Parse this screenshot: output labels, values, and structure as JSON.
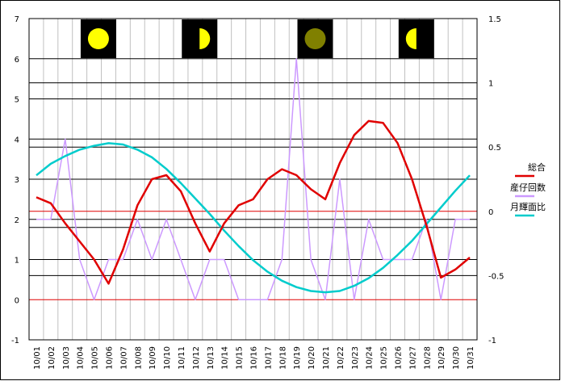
{
  "chart_data": {
    "type": "line",
    "categories": [
      "10/01",
      "10/02",
      "10/03",
      "10/04",
      "10/05",
      "10/06",
      "10/07",
      "10/08",
      "10/09",
      "10/10",
      "10/11",
      "10/12",
      "10/13",
      "10/14",
      "10/15",
      "10/16",
      "10/17",
      "10/18",
      "10/19",
      "10/20",
      "10/21",
      "10/22",
      "10/23",
      "10/24",
      "10/25",
      "10/26",
      "10/27",
      "10/28",
      "10/29",
      "10/30",
      "10/31"
    ],
    "y_left": {
      "min": -1,
      "max": 7,
      "ticks": [
        "-1",
        "0",
        "1",
        "2",
        "3",
        "4",
        "5",
        "6",
        "7"
      ]
    },
    "y_right": {
      "min": -1,
      "max": 1.5,
      "ticks": [
        "-1",
        "-0.5",
        "0",
        "0.5",
        "1",
        "1.5"
      ]
    },
    "extra_gridlines_left": [
      0.6,
      1.8,
      3.8,
      5.4
    ],
    "reference_lines": {
      "left_zero": 0,
      "right_zero": 0,
      "color": "#e00000"
    },
    "grid": true,
    "legend_position": "right",
    "series": [
      {
        "name": "総合",
        "axis": "left",
        "color": "#e00000",
        "values": [
          2.55,
          2.4,
          1.9,
          1.45,
          1.0,
          0.4,
          1.25,
          2.35,
          3.0,
          3.1,
          2.7,
          1.9,
          1.2,
          1.9,
          2.35,
          2.5,
          3.0,
          3.25,
          3.1,
          2.75,
          2.5,
          3.4,
          4.1,
          4.45,
          4.4,
          3.9,
          3.0,
          1.85,
          0.55,
          0.75,
          1.05
        ]
      },
      {
        "name": "産仔回数",
        "axis": "left",
        "color": "#cc99ff",
        "values": [
          2,
          2,
          4,
          1,
          0,
          1,
          1,
          2,
          1,
          2,
          1,
          0,
          1,
          1,
          0,
          0,
          0,
          1,
          6,
          1,
          0,
          3,
          0,
          2,
          1,
          1,
          1,
          2,
          0,
          2,
          2
        ]
      },
      {
        "name": "月輝面比",
        "axis": "right",
        "color": "#00cccc",
        "values": [
          0.28,
          0.37,
          0.43,
          0.48,
          0.51,
          0.53,
          0.52,
          0.48,
          0.42,
          0.33,
          0.22,
          0.1,
          -0.02,
          -0.15,
          -0.27,
          -0.38,
          -0.47,
          -0.54,
          -0.59,
          -0.62,
          -0.63,
          -0.62,
          -0.58,
          -0.52,
          -0.44,
          -0.34,
          -0.23,
          -0.1,
          0.03,
          0.16,
          0.28
        ]
      }
    ],
    "moon_icons": [
      {
        "phase": "full-moon",
        "day_index": 4.3,
        "fill": "#ffff00",
        "shade": "none"
      },
      {
        "phase": "first-quarter-moon",
        "day_index": 11.3,
        "fill": "#ffff00",
        "shade": "left"
      },
      {
        "phase": "new-moon",
        "day_index": 19.3,
        "fill": "#808000",
        "shade": "none"
      },
      {
        "phase": "half-moon",
        "day_index": 26.3,
        "fill": "#ffff00",
        "shade": "right"
      }
    ]
  }
}
